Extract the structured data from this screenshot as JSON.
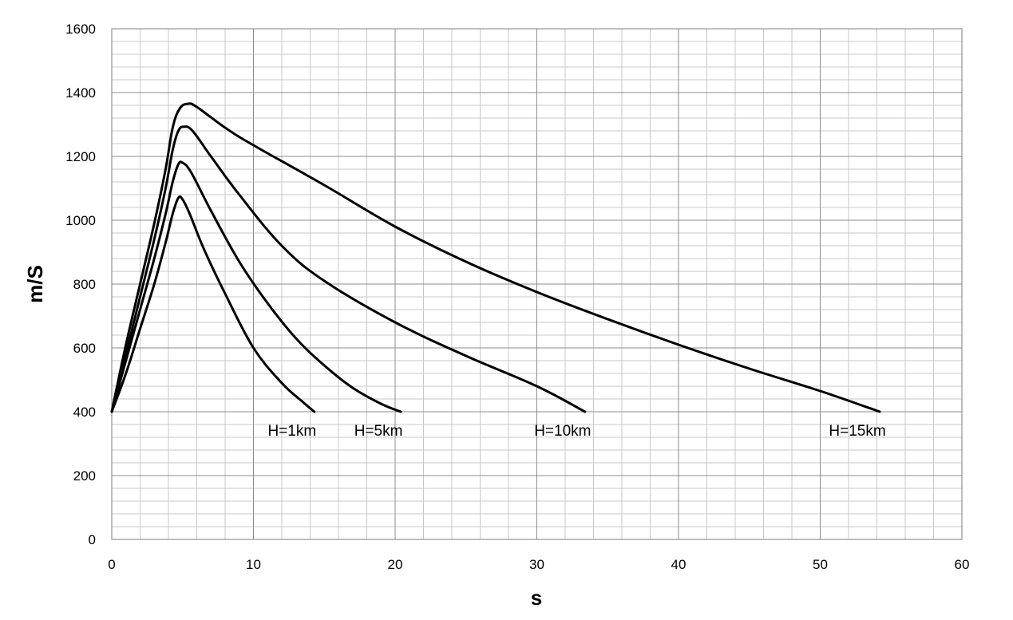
{
  "chart_data": {
    "type": "line",
    "title": "",
    "xlabel": "s",
    "ylabel": "m/S",
    "xlim": [
      0,
      60
    ],
    "ylim": [
      0,
      1600
    ],
    "x_major_step": 10,
    "x_minor_step": 2,
    "y_major_step": 200,
    "y_minor_step": 40,
    "grid": true,
    "legend": "none",
    "line_color": "#000000",
    "x_ticks": [
      "0",
      "10",
      "20",
      "30",
      "40",
      "50",
      "60"
    ],
    "y_ticks": [
      "0",
      "200",
      "400",
      "600",
      "800",
      "1000",
      "1200",
      "1400",
      "1600"
    ],
    "series": [
      {
        "name": "H=1km",
        "points": [
          [
            0,
            400
          ],
          [
            1,
            520
          ],
          [
            2,
            660
          ],
          [
            3,
            800
          ],
          [
            3.8,
            930
          ],
          [
            4.3,
            1020
          ],
          [
            4.7,
            1070
          ],
          [
            5,
            1065
          ],
          [
            5.5,
            1020
          ],
          [
            6.5,
            910
          ],
          [
            8,
            770
          ],
          [
            10,
            600
          ],
          [
            12,
            490
          ],
          [
            13.5,
            430
          ],
          [
            14.3,
            400
          ]
        ]
      },
      {
        "name": "H=5km",
        "points": [
          [
            0,
            400
          ],
          [
            1,
            560
          ],
          [
            2,
            720
          ],
          [
            3,
            880
          ],
          [
            3.8,
            1020
          ],
          [
            4.3,
            1120
          ],
          [
            4.7,
            1175
          ],
          [
            5,
            1180
          ],
          [
            5.6,
            1150
          ],
          [
            7,
            1030
          ],
          [
            9,
            870
          ],
          [
            11,
            740
          ],
          [
            13,
            630
          ],
          [
            15,
            545
          ],
          [
            17,
            475
          ],
          [
            19,
            425
          ],
          [
            20.4,
            400
          ]
        ]
      },
      {
        "name": "H=10km",
        "points": [
          [
            0,
            400
          ],
          [
            1,
            580
          ],
          [
            2,
            760
          ],
          [
            3,
            940
          ],
          [
            3.8,
            1100
          ],
          [
            4.3,
            1220
          ],
          [
            4.7,
            1280
          ],
          [
            5.1,
            1293
          ],
          [
            5.7,
            1280
          ],
          [
            7,
            1200
          ],
          [
            9,
            1080
          ],
          [
            12,
            920
          ],
          [
            15,
            810
          ],
          [
            20,
            680
          ],
          [
            25,
            575
          ],
          [
            30,
            480
          ],
          [
            33.4,
            400
          ]
        ]
      },
      {
        "name": "H=15km",
        "points": [
          [
            0,
            400
          ],
          [
            1,
            610
          ],
          [
            2,
            800
          ],
          [
            3,
            990
          ],
          [
            3.8,
            1160
          ],
          [
            4.3,
            1290
          ],
          [
            4.8,
            1350
          ],
          [
            5.4,
            1365
          ],
          [
            6,
            1355
          ],
          [
            8,
            1290
          ],
          [
            10,
            1235
          ],
          [
            15,
            1110
          ],
          [
            20,
            980
          ],
          [
            25,
            870
          ],
          [
            30,
            775
          ],
          [
            35,
            690
          ],
          [
            40,
            610
          ],
          [
            45,
            535
          ],
          [
            50,
            465
          ],
          [
            54.2,
            400
          ]
        ]
      }
    ],
    "annotations": [
      {
        "text": "H=1km",
        "x": 14.3,
        "y": 400
      },
      {
        "text": "H=5km",
        "x": 20.4,
        "y": 400
      },
      {
        "text": "H=10km",
        "x": 33.4,
        "y": 400
      },
      {
        "text": "H=15km",
        "x": 54.2,
        "y": 400
      }
    ]
  }
}
